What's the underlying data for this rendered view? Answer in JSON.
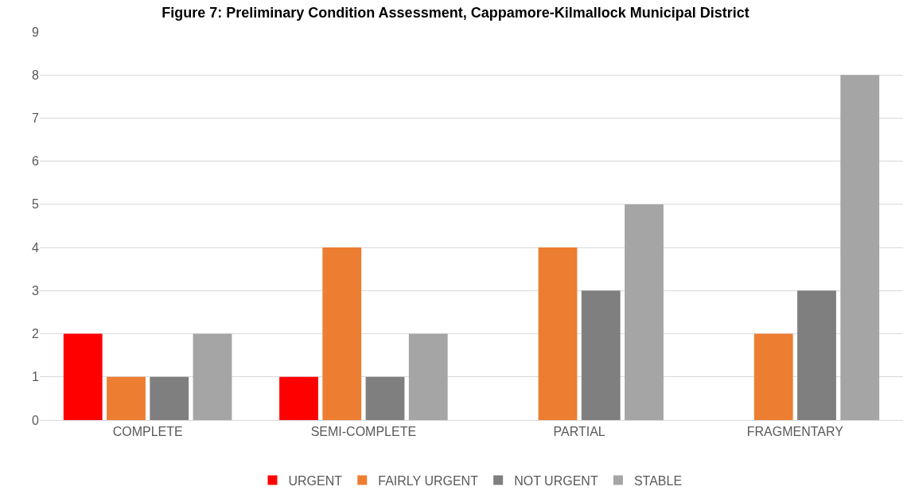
{
  "chart_data": {
    "type": "bar",
    "title": "Figure 7: Preliminary Condition Assessment, Cappamore-Kilmallock Municipal District",
    "categories": [
      "COMPLETE",
      "SEMI-COMPLETE",
      "PARTIAL",
      "FRAGMENTARY"
    ],
    "series": [
      {
        "name": "URGENT",
        "color": "#ff0000",
        "values": [
          2,
          1,
          0,
          0
        ]
      },
      {
        "name": "FAIRLY URGENT",
        "color": "#ed7d31",
        "values": [
          1,
          4,
          4,
          2
        ]
      },
      {
        "name": "NOT URGENT",
        "color": "#7f7f7f",
        "values": [
          1,
          1,
          3,
          3
        ]
      },
      {
        "name": "STABLE",
        "color": "#a5a5a5",
        "values": [
          2,
          2,
          5,
          8
        ]
      }
    ],
    "ylim": [
      0,
      9
    ],
    "yticks": [
      0,
      1,
      2,
      3,
      4,
      5,
      6,
      7,
      8,
      9
    ],
    "grid": "y",
    "legend": "bottom"
  }
}
